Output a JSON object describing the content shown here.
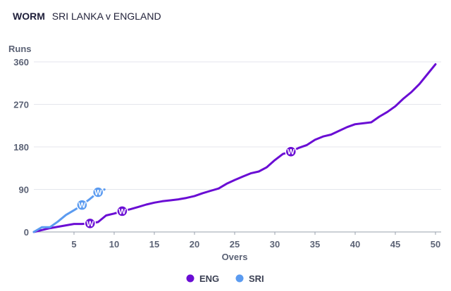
{
  "header": {
    "label": "WORM",
    "match": "SRI LANKA v ENGLAND"
  },
  "chart_data": {
    "type": "line",
    "title": "WORM",
    "subtitle": "SRI LANKA v ENGLAND",
    "xlabel": "Overs",
    "ylabel": "Runs",
    "xlim": [
      0,
      50
    ],
    "ylim": [
      0,
      360
    ],
    "x_ticks": [
      5,
      10,
      15,
      20,
      25,
      30,
      35,
      40,
      45,
      50
    ],
    "y_ticks": [
      0,
      90,
      180,
      270,
      360
    ],
    "x_tick_labels": [
      "5",
      "10",
      "15",
      "20",
      "25",
      "30",
      "35",
      "40",
      "45",
      "50"
    ],
    "y_tick_labels": [
      "0",
      "90",
      "180",
      "270",
      "360"
    ],
    "grid": "horizontal",
    "legend_position": "bottom-center",
    "wicket_marker_label": "W",
    "series": [
      {
        "name": "ENG",
        "color": "#6a0dd4",
        "x": [
          0,
          1,
          2,
          3,
          4,
          5,
          6,
          7,
          8,
          9,
          10,
          11,
          12,
          13,
          14,
          15,
          16,
          17,
          18,
          19,
          20,
          21,
          22,
          23,
          24,
          25,
          26,
          27,
          28,
          29,
          30,
          31,
          32,
          33,
          34,
          35,
          36,
          37,
          38,
          39,
          40,
          41,
          42,
          43,
          44,
          45,
          46,
          47,
          48,
          49,
          50
        ],
        "y": [
          0,
          4,
          8,
          11,
          14,
          17,
          17,
          18,
          21,
          35,
          39,
          44,
          48,
          53,
          58,
          62,
          65,
          67,
          69,
          72,
          76,
          82,
          87,
          92,
          102,
          110,
          117,
          124,
          128,
          137,
          152,
          165,
          170,
          178,
          184,
          195,
          202,
          206,
          214,
          222,
          228,
          230,
          232,
          244,
          254,
          266,
          282,
          296,
          313,
          334,
          355
        ],
        "wickets": [
          {
            "over": 7,
            "runs": 18
          },
          {
            "over": 11,
            "runs": 44
          },
          {
            "over": 32,
            "runs": 170
          }
        ]
      },
      {
        "name": "SRI",
        "color": "#5b9bf0",
        "x": [
          0,
          1,
          2,
          3,
          4,
          5,
          6,
          7,
          8,
          8.8
        ],
        "y": [
          0,
          10,
          10,
          22,
          36,
          46,
          57,
          70,
          84,
          90
        ],
        "wickets": [
          {
            "over": 6,
            "runs": 57
          },
          {
            "over": 8,
            "runs": 84
          }
        ]
      }
    ]
  }
}
